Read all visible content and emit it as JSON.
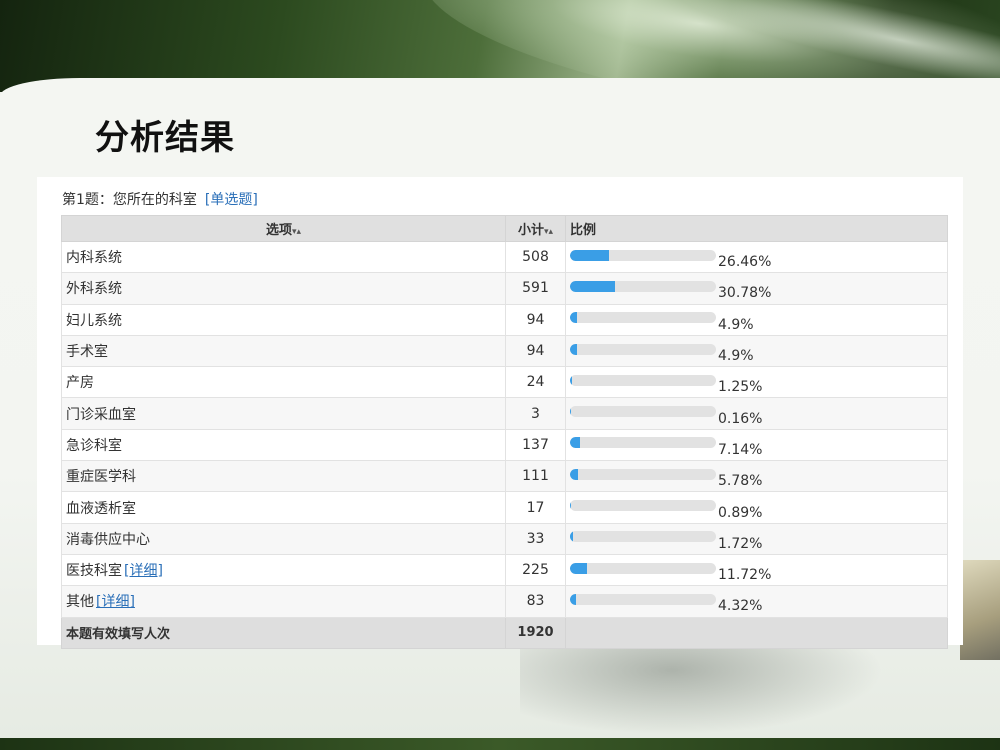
{
  "slide": {
    "title": "分析结果"
  },
  "question": {
    "text": "第1题：您所在的科室",
    "type": "[单选题]"
  },
  "table": {
    "headers": {
      "option": "选项",
      "count": "小计",
      "ratio": "比例",
      "sort_icon": "sort-arrows-icon"
    },
    "rows": [
      {
        "option": "内科系统",
        "detail": "",
        "count": "508",
        "percent_label": "26.46%",
        "percent": 26.46
      },
      {
        "option": "外科系统",
        "detail": "",
        "count": "591",
        "percent_label": "30.78%",
        "percent": 30.78
      },
      {
        "option": "妇儿系统",
        "detail": "",
        "count": "94",
        "percent_label": "4.9%",
        "percent": 4.9
      },
      {
        "option": "手术室",
        "detail": "",
        "count": "94",
        "percent_label": "4.9%",
        "percent": 4.9
      },
      {
        "option": "产房",
        "detail": "",
        "count": "24",
        "percent_label": "1.25%",
        "percent": 1.25
      },
      {
        "option": "门诊采血室",
        "detail": "",
        "count": "3",
        "percent_label": "0.16%",
        "percent": 0.16
      },
      {
        "option": "急诊科室",
        "detail": "",
        "count": "137",
        "percent_label": "7.14%",
        "percent": 7.14
      },
      {
        "option": "重症医学科",
        "detail": "",
        "count": "111",
        "percent_label": "5.78%",
        "percent": 5.78
      },
      {
        "option": "血液透析室",
        "detail": "",
        "count": "17",
        "percent_label": "0.89%",
        "percent": 0.89
      },
      {
        "option": "消毒供应中心",
        "detail": "",
        "count": "33",
        "percent_label": "1.72%",
        "percent": 1.72
      },
      {
        "option": "医技科室",
        "detail": "[详细]",
        "count": "225",
        "percent_label": "11.72%",
        "percent": 11.72
      },
      {
        "option": "其他",
        "detail": "[详细]",
        "count": "83",
        "percent_label": "4.32%",
        "percent": 4.32
      }
    ],
    "total": {
      "label": "本题有效填写人次",
      "count": "1920"
    }
  },
  "colors": {
    "bar_fill": "#3a9ee6",
    "bar_track": "#e2e2e2",
    "link": "#2a6fb8"
  }
}
